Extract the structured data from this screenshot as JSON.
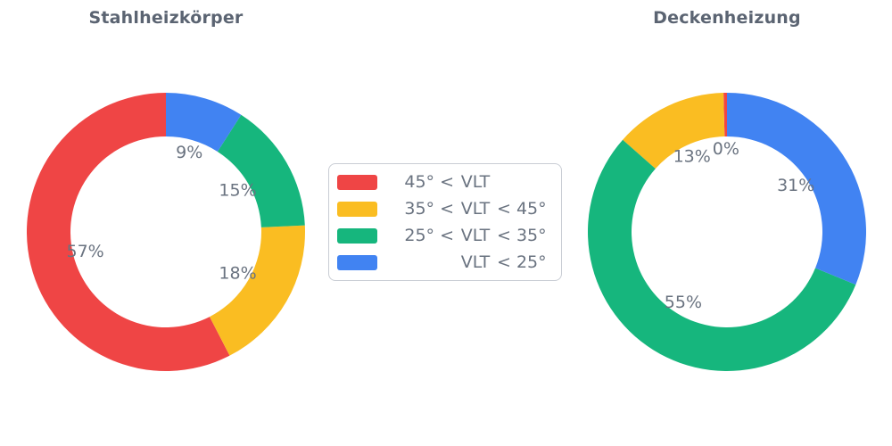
{
  "figure": {
    "background": "#ffffff"
  },
  "styles": {
    "title_color": "#5B6472",
    "pct_label_color": "#6A7380",
    "legend_text_color": "#6A7380",
    "legend_border_color": "#C9CDD4"
  },
  "chart_data": [
    {
      "type": "pie",
      "subtype": "donut",
      "title": "Stahlheizkörper",
      "direction": "counterclockwise",
      "start_angle": "top",
      "hole": 0.69,
      "grid": false,
      "categories": [
        "45° < VLT",
        "35° < VLT < 45°",
        "25° < VLT < 35°",
        "VLT < 25°"
      ],
      "values": [
        57,
        18,
        15,
        9
      ],
      "unit": "%",
      "display_labels": [
        "57%",
        "18%",
        "15%",
        "9%"
      ],
      "colors": [
        "#EF4545",
        "#FABD22",
        "#16B67D",
        "#4183F2"
      ],
      "segment_names": [
        "red-45-plus",
        "yellow-35-to-45",
        "green-25-to-35",
        "blue-under-25"
      ]
    },
    {
      "type": "pie",
      "subtype": "donut",
      "title": "Deckenheizung",
      "direction": "counterclockwise",
      "start_angle": "top",
      "hole": 0.69,
      "grid": false,
      "categories": [
        "45° < VLT",
        "35° < VLT < 45°",
        "25° < VLT < 35°",
        "VLT < 25°"
      ],
      "values": [
        0.4,
        13,
        55,
        31
      ],
      "unit": "%",
      "display_labels": [
        "0%",
        "13%",
        "55%",
        "31%"
      ],
      "colors": [
        "#EF4545",
        "#FABD22",
        "#16B67D",
        "#4183F2"
      ],
      "segment_names": [
        "red-45-plus",
        "yellow-35-to-45",
        "green-25-to-35",
        "blue-under-25"
      ]
    }
  ],
  "legend": {
    "position": "center",
    "items": [
      {
        "label": "45° < VLT",
        "pre": "45° <",
        "vlt": "VLT",
        "post": "",
        "color": "#EF4545",
        "name": "red"
      },
      {
        "label": "35° < VLT < 45°",
        "pre": "35° <",
        "vlt": "VLT",
        "post": "< 45°",
        "color": "#FABD22",
        "name": "yellow"
      },
      {
        "label": "25° < VLT < 35°",
        "pre": "25° <",
        "vlt": "VLT",
        "post": "< 35°",
        "color": "#16B67D",
        "name": "green"
      },
      {
        "label": "VLT < 25°",
        "pre": "",
        "vlt": "VLT",
        "post": "< 25°",
        "color": "#4183F2",
        "name": "blue"
      }
    ]
  }
}
